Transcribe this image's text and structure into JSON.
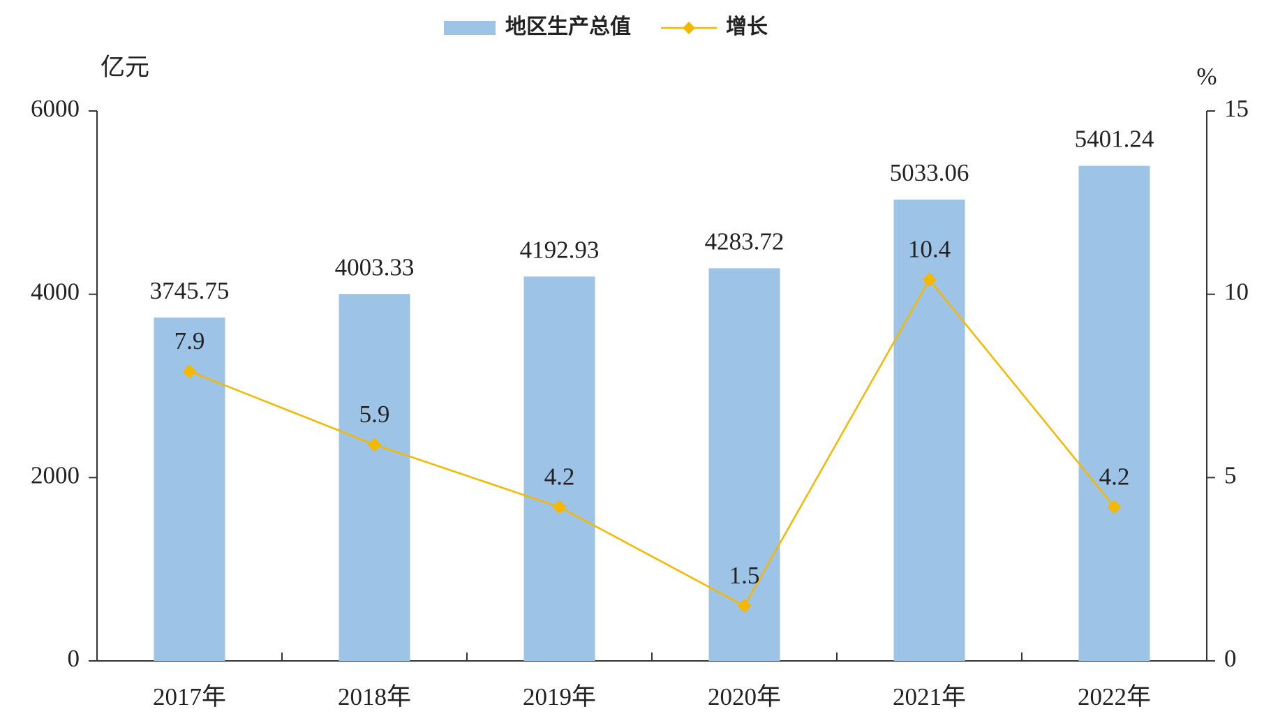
{
  "chart_data": {
    "type": "bar",
    "categories": [
      "2017年",
      "2018年",
      "2019年",
      "2020年",
      "2021年",
      "2022年"
    ],
    "y_label": "亿元",
    "y2_label": "%",
    "series": [
      {
        "name": "地区生产总值",
        "type": "bar",
        "color": "#9dc3e6",
        "values": [
          3745.75,
          4003.33,
          4192.93,
          4283.72,
          5033.06,
          5401.24
        ]
      },
      {
        "name": "增长",
        "type": "line",
        "axis": "y2",
        "color": "#f5b800",
        "values": [
          7.9,
          5.9,
          4.2,
          1.5,
          10.4,
          4.2
        ]
      }
    ],
    "ylim": [
      0,
      6000
    ],
    "yticks": [
      0,
      2000,
      4000,
      6000
    ],
    "y2lim": [
      0,
      15
    ],
    "y2ticks": [
      0,
      5,
      10,
      15
    ],
    "legend": "top"
  }
}
